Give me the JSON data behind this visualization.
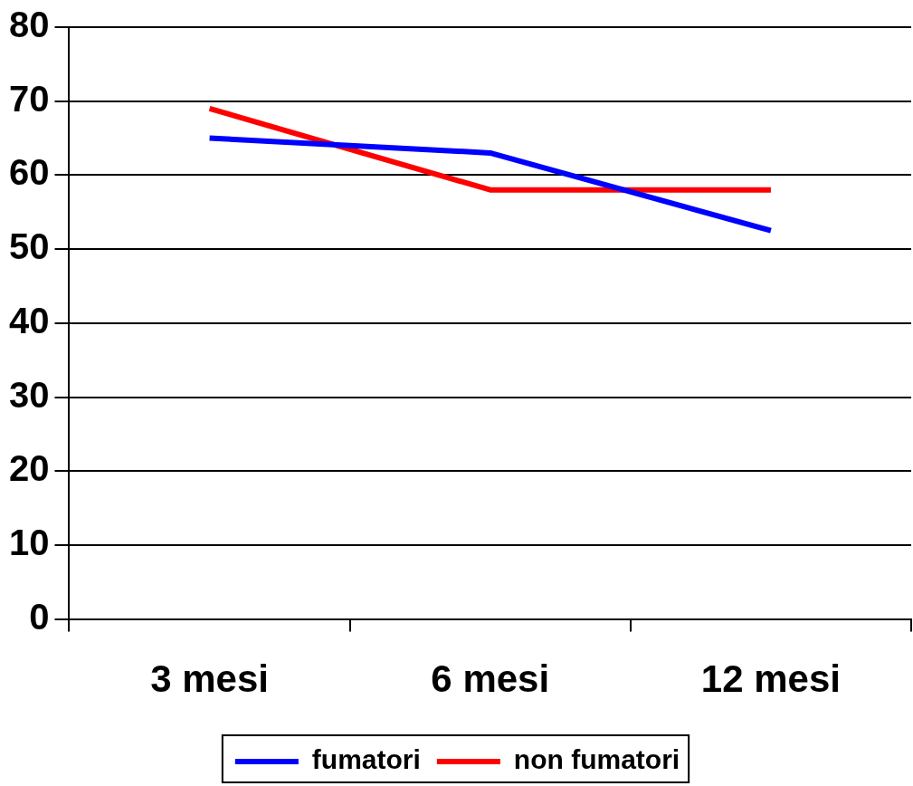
{
  "chart_data": {
    "type": "line",
    "categories": [
      "3 mesi",
      "6 mesi",
      "12 mesi"
    ],
    "series": [
      {
        "name": "fumatori",
        "color": "#0000ff",
        "values": [
          65,
          63,
          52.5
        ]
      },
      {
        "name": "non fumatori",
        "color": "#ff0000",
        "values": [
          69,
          58,
          58
        ]
      }
    ],
    "ylim": [
      0,
      80
    ],
    "yticks": [
      0,
      10,
      20,
      30,
      40,
      50,
      60,
      70,
      80
    ],
    "grid": "y",
    "legend": "bottom",
    "marker": "none",
    "line_style": "solid"
  }
}
